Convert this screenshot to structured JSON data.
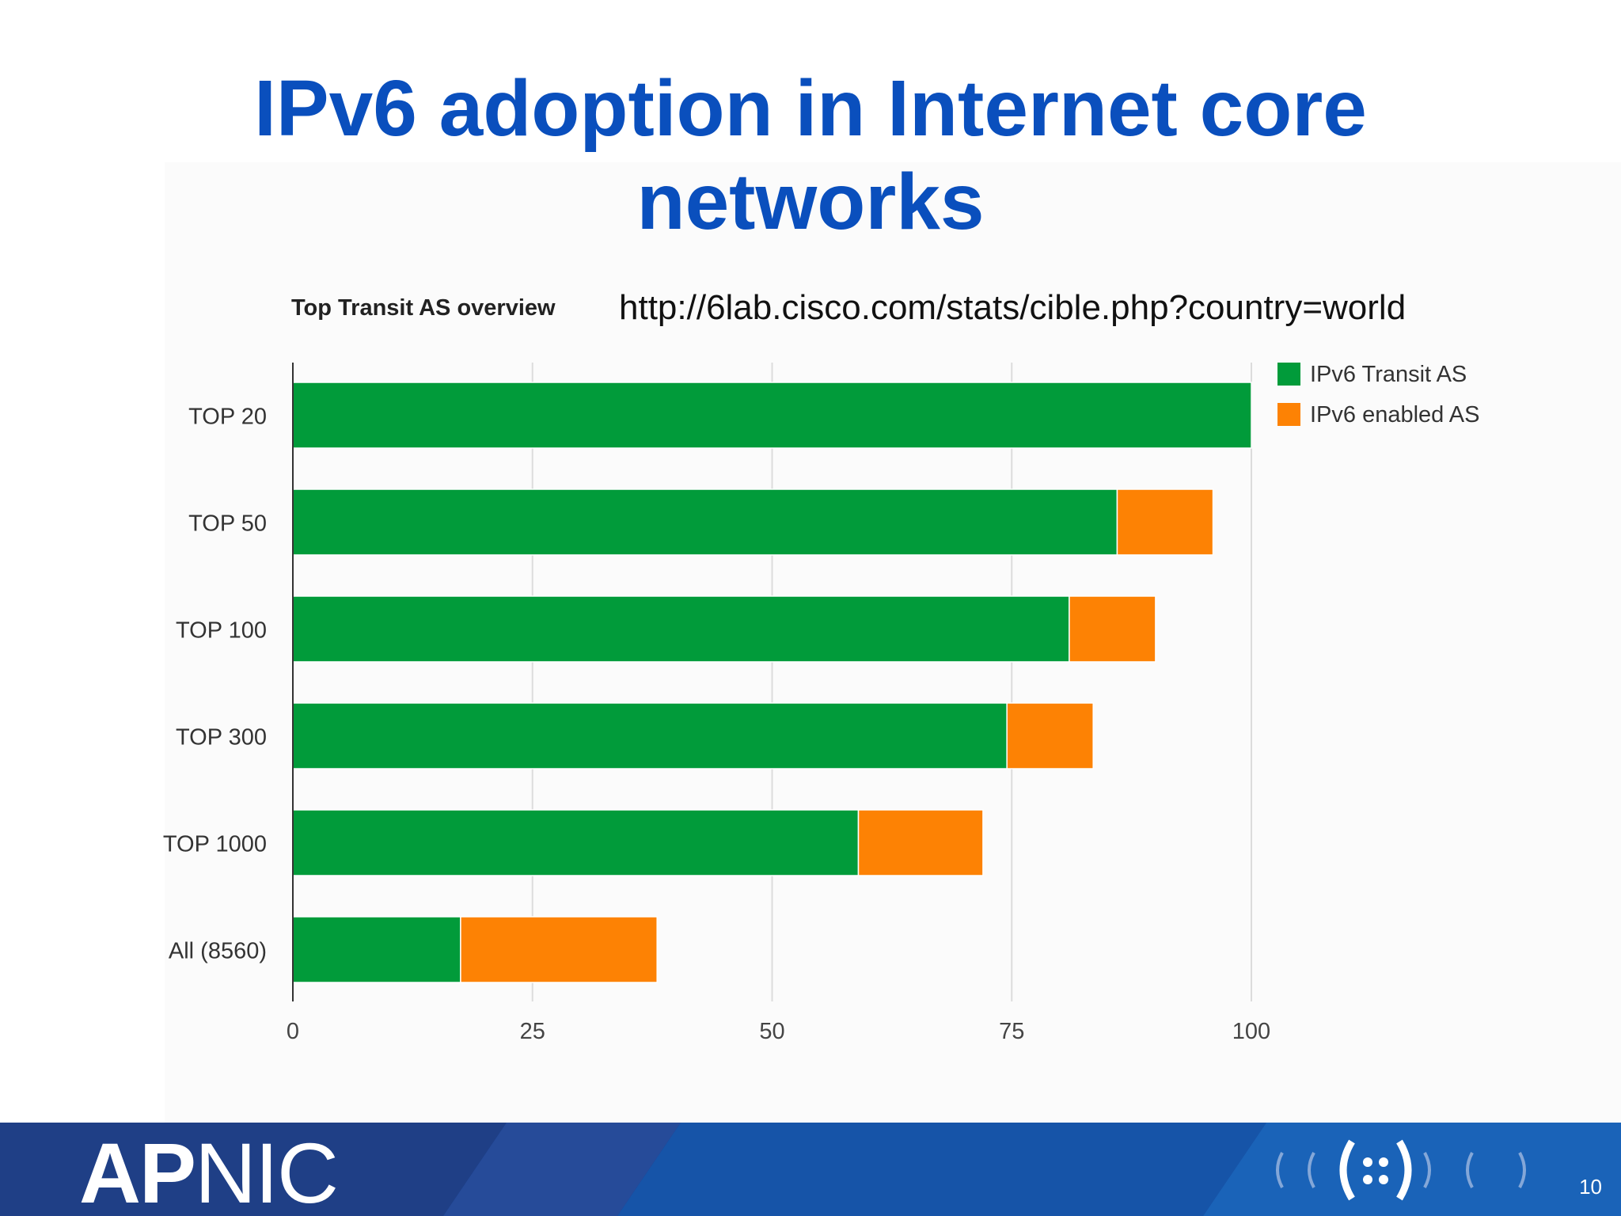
{
  "slide": {
    "title_line1": "IPv6 adoption in Internet core",
    "title_line2": "networks",
    "source_url": "http://6lab.cisco.com/stats/cible.php?country=world",
    "page_number": "10",
    "footer_logo_bold": "AP",
    "footer_logo_thin": "NIC",
    "colors": {
      "title": "#0a4fbd",
      "footer": "#123a8c"
    }
  },
  "chart_data": {
    "type": "bar",
    "orientation": "horizontal",
    "stacked": true,
    "title": "Top Transit AS overview",
    "categories": [
      "TOP 20",
      "TOP 50",
      "TOP 100",
      "TOP 300",
      "TOP 1000",
      "All (8560)"
    ],
    "series": [
      {
        "name": "IPv6 Transit AS",
        "color": "#019b3a",
        "values": [
          100,
          86,
          81,
          74.5,
          59,
          17.5
        ]
      },
      {
        "name": "IPv6 enabled AS",
        "color": "#fd8204",
        "values": [
          0,
          10,
          9,
          9,
          13,
          20.5
        ]
      }
    ],
    "xlim": [
      0,
      100
    ],
    "xticks": [
      "0",
      "25",
      "50",
      "75",
      "100"
    ],
    "grid": true,
    "legend": "top-right"
  }
}
